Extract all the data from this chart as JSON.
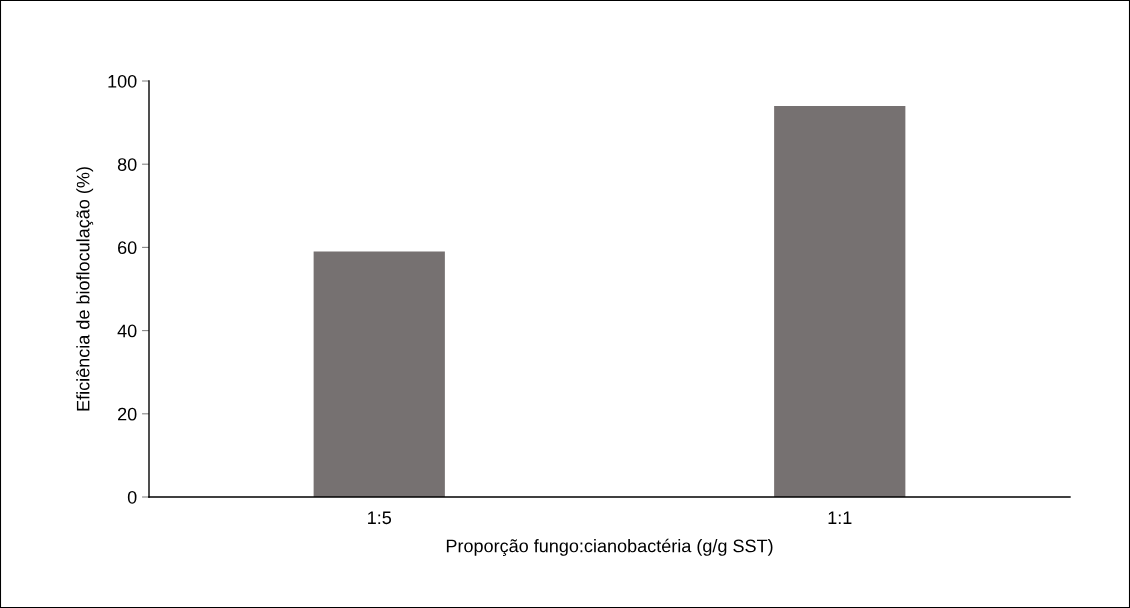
{
  "chart_data": {
    "type": "bar",
    "xlabel": "Proporção fungo:cianobactéria (g/g SST)",
    "ylabel": "Eficiência de biofloculação (%)",
    "categories": [
      "1:5",
      "1:1"
    ],
    "values": [
      59,
      94
    ],
    "color": "#767171",
    "ylim": [
      0,
      100
    ],
    "yticks": [
      0,
      20,
      40,
      60,
      80,
      100
    ],
    "grid": false,
    "legend": false
  }
}
